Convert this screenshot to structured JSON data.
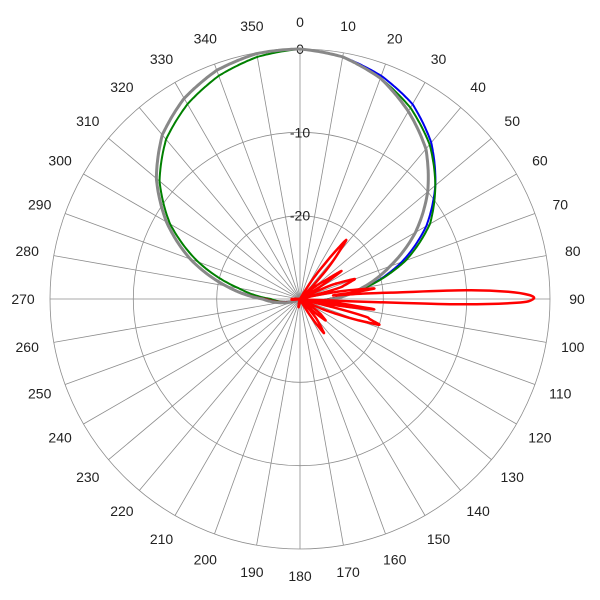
{
  "chart_data": {
    "type": "polar-line",
    "angle_unit": "deg",
    "angle_direction": "clockwise",
    "angle_zero": "top",
    "angle_ticks": [
      0,
      10,
      20,
      30,
      40,
      50,
      60,
      70,
      80,
      90,
      100,
      110,
      120,
      130,
      140,
      150,
      160,
      170,
      180,
      190,
      200,
      210,
      220,
      230,
      240,
      250,
      260,
      270,
      280,
      290,
      300,
      310,
      320,
      330,
      340,
      350
    ],
    "radial_range": [
      -30,
      0
    ],
    "radial_ticks": [
      0,
      -10,
      -20
    ],
    "grid": true,
    "series": [
      {
        "color": "#0000ee",
        "width": 2,
        "angles": [
          0,
          10,
          20,
          30,
          40,
          50,
          60,
          70,
          80,
          90,
          100,
          110,
          120,
          240,
          250,
          260,
          270,
          280,
          290,
          300,
          310,
          320,
          330,
          340,
          350,
          360
        ],
        "values": [
          0,
          -0.5,
          -1.5,
          -3,
          -5.5,
          -8.8,
          -12.5,
          -17,
          -22,
          -26.5,
          -29,
          -30,
          -30,
          -30,
          -29.5,
          -28,
          -26,
          -21,
          -16,
          -11.5,
          -7.5,
          -4.3,
          -2.2,
          -0.8,
          -0.1,
          0
        ]
      },
      {
        "color": "#008000",
        "width": 2,
        "angles": [
          0,
          10,
          20,
          30,
          40,
          50,
          60,
          70,
          80,
          90,
          100,
          110,
          120,
          240,
          250,
          260,
          270,
          280,
          290,
          300,
          310,
          320,
          330,
          340,
          350,
          360
        ],
        "values": [
          0,
          -0.5,
          -1.8,
          -3.5,
          -5.8,
          -8.8,
          -12,
          -16.5,
          -22,
          -26.5,
          -29,
          -30,
          -30,
          -30,
          -29.5,
          -28,
          -26.5,
          -22.5,
          -17,
          -12,
          -8,
          -5,
          -3,
          -1.5,
          -0.5,
          0
        ]
      },
      {
        "color": "#8b1a1a",
        "width": 2,
        "angles": [
          0,
          10,
          20,
          30,
          40,
          50,
          60,
          70,
          80,
          90,
          100,
          110,
          120,
          240,
          250,
          260,
          270,
          280,
          290,
          300,
          310,
          320,
          330,
          340,
          350,
          360
        ],
        "values": [
          0,
          -0.5,
          -1.8,
          -4,
          -6.5,
          -10,
          -14,
          -18.5,
          -22.5,
          -26.5,
          -29,
          -30,
          -30,
          -30,
          -29.5,
          -28,
          -26,
          -21,
          -16,
          -11.5,
          -7.5,
          -4.3,
          -2.2,
          -0.8,
          -0.1,
          0
        ]
      },
      {
        "color": "#888888",
        "width": 3,
        "angles": [
          0,
          10,
          20,
          30,
          40,
          50,
          60,
          70,
          80,
          90,
          100,
          110,
          120,
          240,
          250,
          260,
          270,
          280,
          290,
          300,
          310,
          320,
          330,
          340,
          350,
          360
        ],
        "values": [
          0,
          -0.5,
          -1.8,
          -4,
          -6.5,
          -10,
          -14,
          -18.5,
          -22.5,
          -26,
          -28.5,
          -29.5,
          -30,
          -30,
          -29,
          -27.5,
          -25.5,
          -21,
          -16,
          -11.5,
          -7.5,
          -4.3,
          -2.2,
          -0.8,
          -0.1,
          0
        ]
      },
      {
        "color": "#ff0000",
        "width": 2.5,
        "angles": [
          0,
          25,
          30,
          35,
          38,
          42,
          46,
          50,
          54,
          56,
          60,
          64,
          66,
          70,
          74,
          75,
          76,
          80,
          82,
          84,
          86,
          87,
          88,
          89,
          90,
          91,
          92,
          93,
          94,
          96,
          98,
          100,
          103,
          105,
          108,
          112,
          116,
          120,
          126,
          130,
          133,
          136,
          140,
          145,
          150,
          155,
          160,
          170,
          180,
          190,
          200,
          210,
          220,
          230,
          240,
          250,
          260,
          265,
          270,
          275,
          280,
          290,
          300,
          320,
          340,
          360
        ],
        "values": [
          -30,
          -30,
          -30,
          -25,
          -21,
          -25,
          -30,
          -28,
          -26,
          -24,
          -29,
          -30,
          -26,
          -23,
          -25,
          -27,
          -30,
          -24,
          -21,
          -26,
          -19,
          -10,
          -5,
          -2.5,
          -2,
          -4,
          -12,
          -27,
          -30,
          -26,
          -21,
          -26,
          -30,
          -22,
          -20,
          -25,
          -29,
          -30,
          -27,
          -26,
          -28,
          -30,
          -27,
          -25,
          -29,
          -30,
          -30,
          -30,
          -30,
          -29,
          -30,
          -30,
          -30,
          -30,
          -30,
          -30,
          -30,
          -29,
          -29,
          -30,
          -30,
          -30,
          -30,
          -30,
          -30,
          -30
        ]
      }
    ]
  }
}
